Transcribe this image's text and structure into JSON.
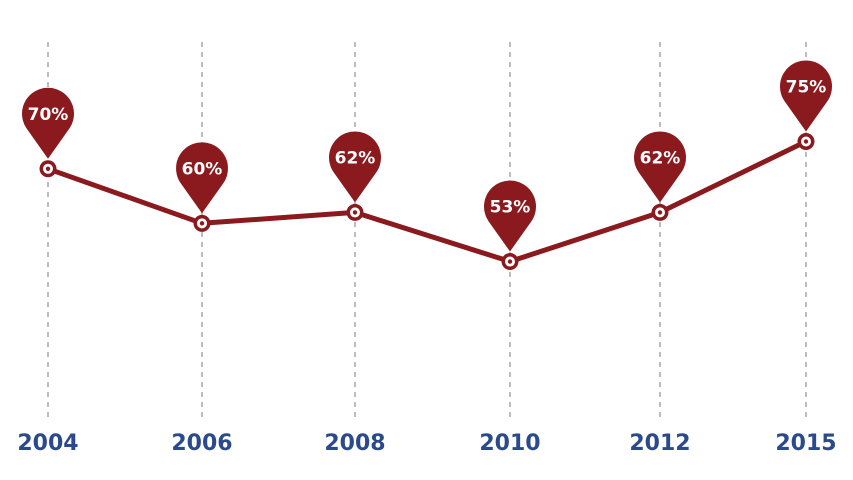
{
  "colors": {
    "line": "#8b1a1e",
    "pin": "#8b1a1e",
    "pin_text": "#ffffff",
    "marker_fill": "#ffffff",
    "axis_label": "#2b4a8b",
    "grid": "#bdbdbd"
  },
  "chart_data": {
    "type": "line",
    "title": "",
    "xlabel": "",
    "ylabel": "",
    "categories": [
      "2004",
      "2006",
      "2008",
      "2010",
      "2012",
      "2015"
    ],
    "series": [
      {
        "values": [
          70,
          60,
          62,
          53,
          62,
          75
        ],
        "labels": [
          "70%",
          "60%",
          "62%",
          "53%",
          "62%",
          "75%"
        ]
      }
    ],
    "grid": "vertical dashed lines at each category",
    "legend": "none"
  }
}
